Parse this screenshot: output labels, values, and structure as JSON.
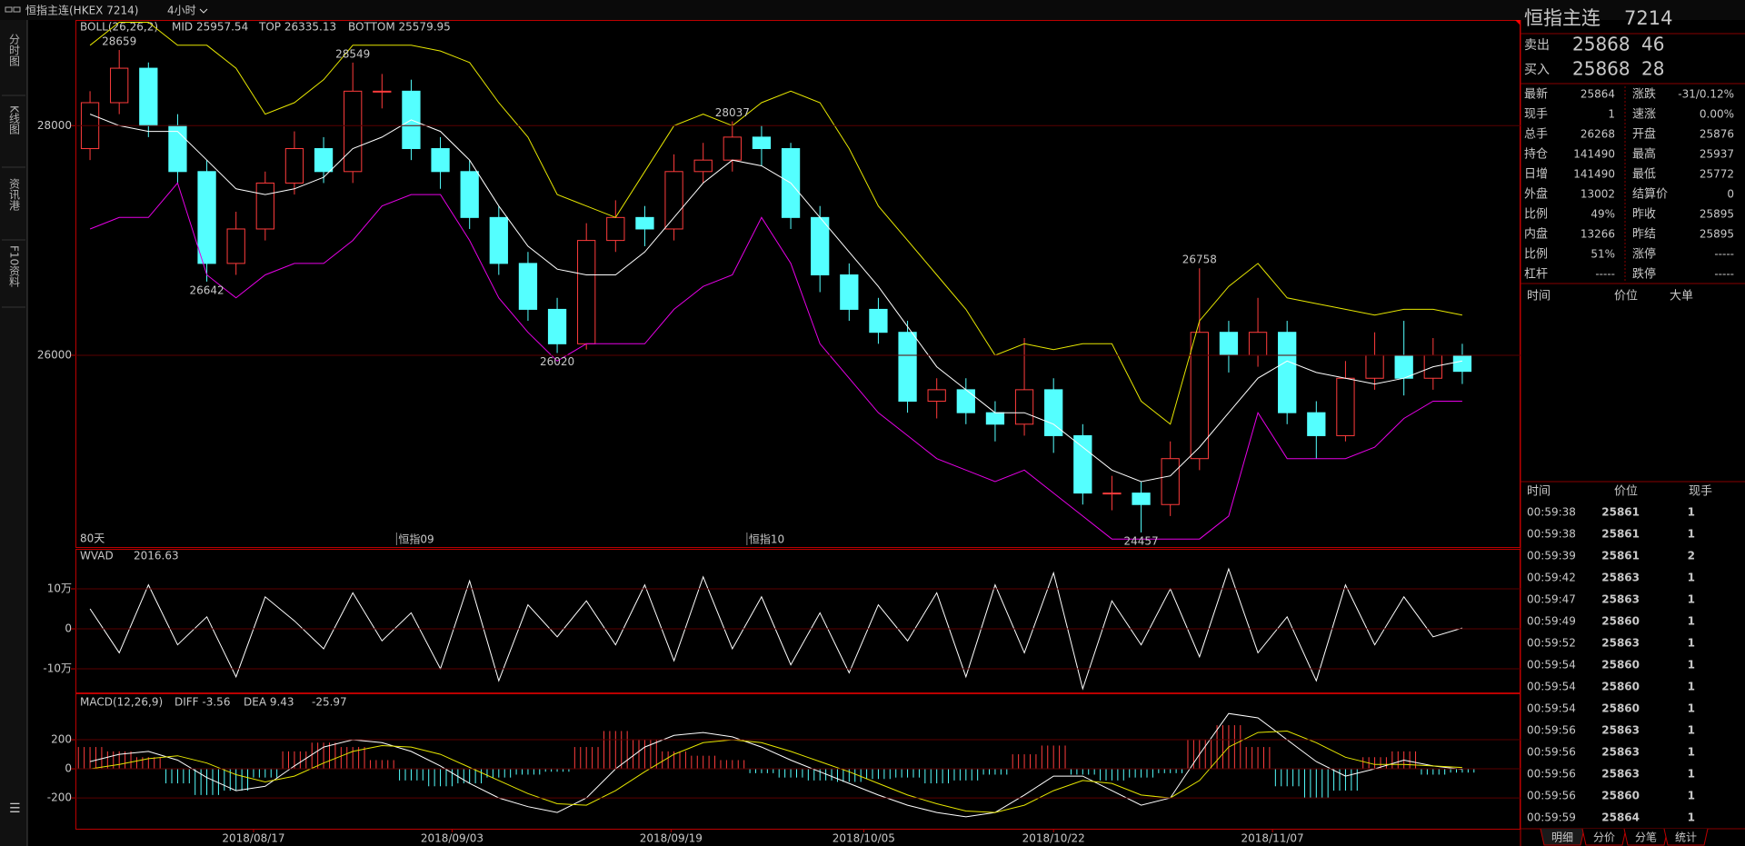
{
  "header": {
    "symbol": "恒指主连(HKEX 7214)",
    "period": "4小时"
  },
  "sidebar": {
    "tabs": [
      "分时图",
      "K线图",
      "资讯港",
      "F10资料"
    ]
  },
  "chart_data": [
    {
      "type": "candlestick",
      "legend_title": "BOLL(26,26,2)",
      "period_label": "80天",
      "open": [
        27800,
        28200,
        28500,
        28000,
        27600,
        26800,
        27100,
        27500,
        27800,
        27600,
        28300,
        28300,
        27800,
        27600,
        27200,
        26800,
        26400,
        26100,
        27000,
        27200,
        27100,
        27600,
        27700,
        27900,
        27800,
        27200,
        26700,
        26400,
        26200,
        25600,
        25700,
        25500,
        25400,
        25700,
        25300,
        24800,
        24800,
        24700,
        25100,
        26200,
        26000,
        26200,
        25500,
        25300,
        25800,
        26000,
        25800,
        26000
      ],
      "high": [
        28300,
        28659,
        28550,
        28100,
        27700,
        27250,
        27600,
        27950,
        27900,
        28549,
        28450,
        28400,
        27900,
        27700,
        27300,
        26900,
        26500,
        27150,
        27350,
        27300,
        27750,
        27850,
        28037,
        28000,
        27850,
        27300,
        26800,
        26500,
        26300,
        25800,
        25800,
        25600,
        26150,
        25800,
        25400,
        24950,
        24900,
        25250,
        26758,
        26300,
        26500,
        26300,
        25600,
        25950,
        26200,
        26300,
        26150,
        26100
      ],
      "low": [
        27700,
        28100,
        27900,
        27500,
        26642,
        26700,
        27000,
        27400,
        27500,
        27500,
        28150,
        27700,
        27450,
        27100,
        26700,
        26300,
        26020,
        26050,
        26900,
        26950,
        27000,
        27500,
        27600,
        27650,
        27100,
        26550,
        26300,
        26100,
        25500,
        25450,
        25400,
        25250,
        25300,
        25150,
        24700,
        24650,
        24457,
        24600,
        25000,
        25850,
        25900,
        25400,
        25100,
        25250,
        25700,
        25650,
        25700,
        25750
      ],
      "close": [
        28200,
        28500,
        28000,
        27600,
        26800,
        27100,
        27500,
        27800,
        27600,
        28300,
        28300,
        27800,
        27600,
        27200,
        26800,
        26400,
        26100,
        27000,
        27200,
        27100,
        27600,
        27700,
        27900,
        27800,
        27200,
        26700,
        26400,
        26200,
        25600,
        25700,
        25500,
        25400,
        25700,
        25300,
        24800,
        24800,
        24700,
        25100,
        26200,
        26000,
        26200,
        25500,
        25300,
        25800,
        26000,
        25800,
        26000,
        25860
      ],
      "up_color": "#ff3c3c",
      "down_color": "#54ffff",
      "series": [
        {
          "name": "MID 25957.54",
          "color": "#ffffff",
          "values": [
            28100,
            28000,
            27950,
            27950,
            27700,
            27450,
            27400,
            27450,
            27550,
            27800,
            27900,
            28050,
            27950,
            27700,
            27300,
            26950,
            26750,
            26700,
            26700,
            26900,
            27200,
            27500,
            27700,
            27650,
            27500,
            27200,
            26900,
            26600,
            26250,
            25900,
            25700,
            25500,
            25500,
            25400,
            25200,
            25000,
            24900,
            24950,
            25200,
            25500,
            25800,
            25950,
            25850,
            25800,
            25750,
            25800,
            25900,
            25950
          ]
        },
        {
          "name": "TOP 26335.13",
          "color": "#e6e600",
          "values": [
            28700,
            28900,
            28900,
            28700,
            28700,
            28500,
            28100,
            28200,
            28400,
            28700,
            28700,
            28700,
            28650,
            28550,
            28200,
            27900,
            27400,
            27300,
            27200,
            27600,
            28000,
            28100,
            28000,
            28200,
            28300,
            28200,
            27800,
            27300,
            27000,
            26700,
            26400,
            26000,
            26100,
            26050,
            26100,
            26100,
            25600,
            25400,
            26300,
            26600,
            26800,
            26500,
            26450,
            26400,
            26350,
            26400,
            26400,
            26350
          ]
        },
        {
          "name": "BOTTOM 25579.95",
          "color": "#e600e6",
          "values": [
            27100,
            27200,
            27200,
            27500,
            26700,
            26500,
            26700,
            26800,
            26800,
            27000,
            27300,
            27400,
            27400,
            27000,
            26500,
            26200,
            25950,
            26100,
            26100,
            26100,
            26400,
            26600,
            26700,
            27200,
            26800,
            26100,
            25800,
            25500,
            25300,
            25100,
            25000,
            24900,
            25000,
            24800,
            24600,
            24400,
            24400,
            24400,
            24400,
            24600,
            25500,
            25100,
            25100,
            25100,
            25200,
            25450,
            25600,
            25600
          ]
        }
      ],
      "annotations": [
        {
          "x": 1,
          "value": 28659,
          "color": "#ff4040",
          "pos": "above"
        },
        {
          "x": 4,
          "value": 26642,
          "color": "#54ffff",
          "pos": "below"
        },
        {
          "x": 9,
          "value": 28549,
          "color": "#ff4040",
          "pos": "above"
        },
        {
          "x": 16,
          "value": 26020,
          "color": "#54ffff",
          "pos": "below"
        },
        {
          "x": 22,
          "value": 28037,
          "color": "#ff4040",
          "pos": "above"
        },
        {
          "x": 36,
          "value": 24457,
          "color": "#54ffff",
          "pos": "below"
        },
        {
          "x": 38,
          "value": 26758,
          "color": "#ff4040",
          "pos": "above"
        }
      ],
      "contract_marks": [
        {
          "value": 10.5,
          "label": "恒指09"
        },
        {
          "value": 22.5,
          "label": "恒指10"
        }
      ],
      "ylim": [
        24330,
        28920
      ],
      "yticks": [
        26000,
        28000
      ],
      "grid": true
    },
    {
      "type": "line",
      "title": "WVAD",
      "value_text": "2016.63",
      "color": "#ffffff",
      "values": [
        50000,
        -60000,
        110000,
        -40000,
        30000,
        -120000,
        80000,
        20000,
        -50000,
        90000,
        -30000,
        40000,
        -100000,
        120000,
        -130000,
        60000,
        -20000,
        70000,
        -40000,
        110000,
        -80000,
        130000,
        -50000,
        80000,
        -90000,
        40000,
        -110000,
        60000,
        -30000,
        90000,
        -120000,
        110000,
        -60000,
        140000,
        -150000,
        70000,
        -40000,
        100000,
        -70000,
        150000,
        -60000,
        30000,
        -130000,
        110000,
        -40000,
        80000,
        -20000,
        2016.63
      ],
      "ylim": [
        -159000,
        200000
      ],
      "yticks": [
        {
          "value": 100000,
          "label": "10万"
        },
        0,
        {
          "value": -100000,
          "label": "-10万"
        }
      ],
      "grid": true
    },
    {
      "type": "macd",
      "title": "MACD(12,26,9)",
      "value_text": "-25.97",
      "histogram": [
        150,
        120,
        80,
        -100,
        -180,
        -150,
        -60,
        120,
        180,
        150,
        60,
        -80,
        -120,
        -100,
        -60,
        -40,
        -20,
        150,
        260,
        200,
        120,
        90,
        60,
        -30,
        -60,
        -80,
        -90,
        -70,
        -60,
        -100,
        -80,
        -40,
        100,
        160,
        -40,
        -80,
        -60,
        -30,
        200,
        300,
        150,
        -120,
        -200,
        -150,
        80,
        120,
        -40,
        -26
      ],
      "up_color": "#ff3c3c",
      "down_color": "#54ffff",
      "series": [
        {
          "name": "DIFF -3.56",
          "color": "#ffffff",
          "values": [
            50,
            100,
            120,
            60,
            -60,
            -150,
            -120,
            20,
            150,
            200,
            180,
            120,
            20,
            -100,
            -200,
            -260,
            -300,
            -200,
            0,
            150,
            230,
            250,
            220,
            150,
            60,
            -20,
            -100,
            -180,
            -250,
            -300,
            -330,
            -300,
            -180,
            -50,
            -50,
            -150,
            -250,
            -200,
            100,
            380,
            350,
            200,
            50,
            -50,
            0,
            60,
            20,
            -3.56
          ]
        },
        {
          "name": "DEA 9.43",
          "color": "#e6e600",
          "values": [
            0,
            30,
            70,
            90,
            40,
            -40,
            -90,
            -50,
            40,
            120,
            160,
            150,
            100,
            10,
            -80,
            -170,
            -240,
            -250,
            -150,
            -20,
            100,
            180,
            200,
            180,
            120,
            50,
            -20,
            -100,
            -180,
            -240,
            -290,
            -300,
            -250,
            -150,
            -80,
            -100,
            -180,
            -200,
            -80,
            150,
            250,
            260,
            180,
            80,
            30,
            30,
            20,
            9.43
          ]
        }
      ],
      "ylim": [
        -412,
        519
      ],
      "yticks": [
        200,
        0,
        -200
      ],
      "grid": true,
      "xticks": [
        {
          "value": 5.6,
          "label": "2018/08/17"
        },
        {
          "value": 12.4,
          "label": "2018/09/03"
        },
        {
          "value": 19.9,
          "label": "2018/09/19"
        },
        {
          "value": 26.5,
          "label": "2018/10/05"
        },
        {
          "value": 33,
          "label": "2018/10/22"
        },
        {
          "value": 40.5,
          "label": "2018/11/07"
        }
      ]
    }
  ],
  "quote": {
    "name": "恒指主连",
    "code": "7214",
    "sell": {
      "label": "卖出",
      "price": "25868",
      "qty": "46"
    },
    "buy": {
      "label": "买入",
      "price": "25868",
      "qty": "28"
    },
    "stats": [
      {
        "label": "最新",
        "value": "25864",
        "color": "#40ff40",
        "label2": "涨跌",
        "value2": "-31/0.12%",
        "color2": "#40ff40"
      },
      {
        "label": "现手",
        "value": "1",
        "color": "#ffff40",
        "label2": "速涨",
        "value2": "0.00%",
        "color2": "#ffffff"
      },
      {
        "label": "总手",
        "value": "26268",
        "color": "#ffff40",
        "label2": "开盘",
        "value2": "25876",
        "color2": "#40ff40"
      },
      {
        "label": "持仓",
        "value": "141490",
        "color": "#ffff40",
        "label2": "最高",
        "value2": "25937",
        "color2": "#ff4040"
      },
      {
        "label": "日增",
        "value": "141490",
        "color": "#ffff40",
        "label2": "最低",
        "value2": "25772",
        "color2": "#40ff40"
      },
      {
        "label": "外盘",
        "value": "13002",
        "color": "#ffff40",
        "label2": "结算价",
        "value2": "0",
        "color2": "#ffffff"
      },
      {
        "label": "比例",
        "value": "49%",
        "color": "#ffff40",
        "label2": "昨收",
        "value2": "25895",
        "color2": "#ffffff"
      },
      {
        "label": "内盘",
        "value": "13266",
        "color": "#ffff40",
        "label2": "昨结",
        "value2": "25895",
        "color2": "#ffffff"
      },
      {
        "label": "比例",
        "value": "51%",
        "color": "#ffff40",
        "label2": "涨停",
        "value2": "-----",
        "color2": "#ff4040"
      },
      {
        "label": "杠杆",
        "value": "-----",
        "color": "#ffff40",
        "label2": "跌停",
        "value2": "-----",
        "color2": "#40ff40"
      }
    ],
    "big_header": [
      "时间",
      "价位",
      "大单"
    ],
    "trade_header": [
      "时间",
      "价位",
      "现手"
    ],
    "price_color": "#40ff40",
    "trades": [
      {
        "time": "00:59:38",
        "price": "25861",
        "qty": "1",
        "qty_color": "#40ff40"
      },
      {
        "time": "00:59:38",
        "price": "25861",
        "qty": "1",
        "qty_color": "#40ff40"
      },
      {
        "time": "00:59:39",
        "price": "25861",
        "qty": "2",
        "qty_color": "#40ff40"
      },
      {
        "time": "00:59:42",
        "price": "25863",
        "qty": "1",
        "qty_color": "#ff4040"
      },
      {
        "time": "00:59:47",
        "price": "25863",
        "qty": "1",
        "qty_color": "#ff4040"
      },
      {
        "time": "00:59:49",
        "price": "25860",
        "qty": "1",
        "qty_color": "#40ff40"
      },
      {
        "time": "00:59:52",
        "price": "25863",
        "qty": "1",
        "qty_color": "#ff4040"
      },
      {
        "time": "00:59:54",
        "price": "25860",
        "qty": "1",
        "qty_color": "#40ff40"
      },
      {
        "time": "00:59:54",
        "price": "25860",
        "qty": "1",
        "qty_color": "#40ff40"
      },
      {
        "time": "00:59:54",
        "price": "25860",
        "qty": "1",
        "qty_color": "#40ff40"
      },
      {
        "time": "00:59:56",
        "price": "25863",
        "qty": "1",
        "qty_color": "#ff4040"
      },
      {
        "time": "00:59:56",
        "price": "25863",
        "qty": "1",
        "qty_color": "#ff4040"
      },
      {
        "time": "00:59:56",
        "price": "25863",
        "qty": "1",
        "qty_color": "#ff4040"
      },
      {
        "time": "00:59:56",
        "price": "25860",
        "qty": "1",
        "qty_color": "#40ff40"
      },
      {
        "time": "00:59:59",
        "price": "25864",
        "qty": "1",
        "qty_color": "#ff4040"
      }
    ],
    "tabs": [
      "明细",
      "分价",
      "分笔",
      "统计"
    ]
  }
}
